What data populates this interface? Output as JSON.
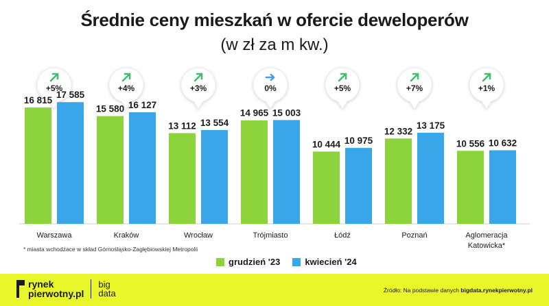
{
  "header": {
    "title": "Średnie ceny mieszkań w ofercie deweloperów",
    "subtitle": "(w zł za m kw.)"
  },
  "chart_data": {
    "type": "bar",
    "categories": [
      "Warszawa",
      "Kraków",
      "Wrocław",
      "Trójmiasto",
      "Łódź",
      "Poznań",
      "Aglomeracja Katowicka*"
    ],
    "category_lines": [
      [
        "Warszawa"
      ],
      [
        "Kraków"
      ],
      [
        "Wrocław"
      ],
      [
        "Trójmiasto"
      ],
      [
        "Łódź"
      ],
      [
        "Poznań"
      ],
      [
        "Aglomeracja",
        "Katowicka*"
      ]
    ],
    "series": [
      {
        "name": "grudzień '23",
        "values": [
          16815,
          15580,
          13112,
          14965,
          10444,
          12332,
          10556
        ],
        "labels": [
          "16 815",
          "15 580",
          "13 112",
          "14 965",
          "10 444",
          "12 332",
          "10 556"
        ],
        "color": "#8dd33c"
      },
      {
        "name": "kwiecień '24",
        "values": [
          17585,
          16127,
          13554,
          15003,
          10975,
          13175,
          10632
        ],
        "labels": [
          "17 585",
          "16 127",
          "13 554",
          "15 003",
          "10 975",
          "13 175",
          "10 632"
        ],
        "color": "#3aa6ea"
      }
    ],
    "changes": [
      {
        "label": "+5%",
        "direction": "up"
      },
      {
        "label": "+4%",
        "direction": "up"
      },
      {
        "label": "+3%",
        "direction": "up"
      },
      {
        "label": "0%",
        "direction": "flat"
      },
      {
        "label": "+5%",
        "direction": "up"
      },
      {
        "label": "+7%",
        "direction": "up"
      },
      {
        "label": "+1%",
        "direction": "up"
      }
    ],
    "arrow_colors": {
      "up": "#3fbf6a",
      "flat": "#4a9be0"
    },
    "ylim": [
      0,
      20000
    ],
    "legend_position": "bottom",
    "grid": false
  },
  "footnote": "* miasta wchodzace w skład Górnośląsko-Zagłębiowskiej Metropolii",
  "footer": {
    "logo_line1": "rynek",
    "logo_line2": "pierwotny.pl",
    "logo_big1": "big",
    "logo_big2": "data",
    "source_prefix": "Źródło: Na podstawie danych",
    "source_link": "bigdata.rynekpierwotny.pl"
  }
}
